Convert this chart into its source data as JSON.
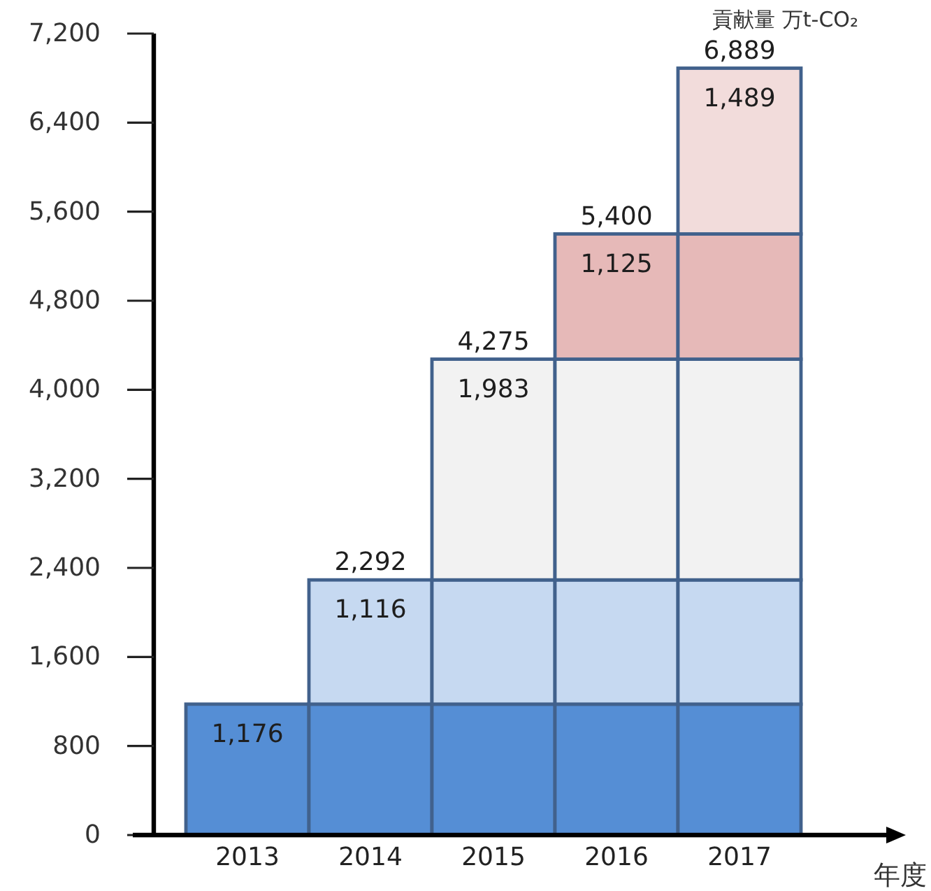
{
  "chart_data": {
    "type": "bar",
    "stacked": true,
    "categories": [
      "2013",
      "2014",
      "2015",
      "2016",
      "2017"
    ],
    "series": [
      {
        "color": "#558ed5",
        "values": [
          1176,
          1176,
          1176,
          1176,
          1176
        ],
        "value_labels": [
          "1,176",
          null,
          null,
          null,
          null
        ]
      },
      {
        "color": "#c6d9f1",
        "values": [
          null,
          1116,
          1116,
          1116,
          1116
        ],
        "value_labels": [
          null,
          "1,116",
          null,
          null,
          null
        ]
      },
      {
        "color": "#f2f2f2",
        "values": [
          null,
          null,
          1983,
          1983,
          1983
        ],
        "value_labels": [
          null,
          null,
          "1,983",
          null,
          null
        ]
      },
      {
        "color": "#e6b9b8",
        "values": [
          null,
          null,
          null,
          1125,
          1125
        ],
        "value_labels": [
          null,
          null,
          null,
          "1,125",
          null
        ]
      },
      {
        "color": "#f2dcdb",
        "values": [
          null,
          null,
          null,
          null,
          1489
        ],
        "value_labels": [
          null,
          null,
          null,
          null,
          "1,489"
        ]
      }
    ],
    "totals": [
      null,
      "2,292",
      "4,275",
      "5,400",
      "6,889"
    ],
    "ylabel": "貢献量 万t-CO₂",
    "xlabel": "年度",
    "ylim": [
      0,
      7200
    ],
    "yticks": [
      0,
      800,
      {
        "value": 1600,
        "label": "1,600"
      },
      {
        "value": 2400,
        "label": "2,400"
      },
      {
        "value": 3200,
        "label": "3,200"
      },
      {
        "value": 4000,
        "label": "4,000"
      },
      {
        "value": 4800,
        "label": "4,800"
      },
      {
        "value": 5600,
        "label": "5,600"
      },
      {
        "value": 6400,
        "label": "6,400"
      },
      {
        "value": 7200,
        "label": "7,200"
      }
    ]
  }
}
